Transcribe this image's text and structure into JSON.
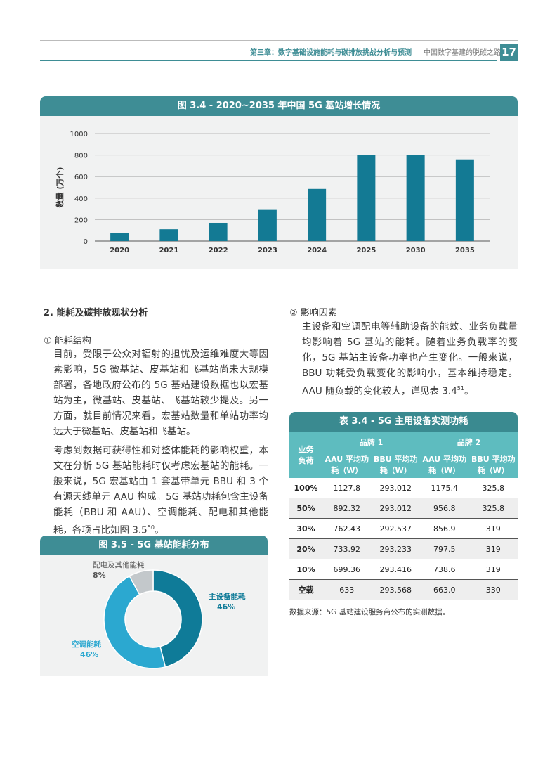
{
  "header": {
    "chapter": "第三章：数字基础设施能耗与碳排放挑战分析与预测",
    "book": "中国数字基建的脱碳之路",
    "page": "17"
  },
  "chart_data": [
    {
      "type": "bar",
      "title": "图 3.4 - 2020~2035 年中国 5G 基站增长情况",
      "y_label": "数量 (万个)",
      "categories": [
        "2020",
        "2021",
        "2022",
        "2023",
        "2024",
        "2025",
        "2030",
        "2035"
      ],
      "values": [
        77,
        110,
        170,
        290,
        485,
        800,
        800,
        760
      ],
      "color": "#137a94",
      "ylim": [
        0,
        1000
      ],
      "yticks": [
        0,
        200,
        400,
        600,
        800,
        1000
      ],
      "grid": true
    },
    {
      "type": "pie",
      "title": "图 3.5 - 5G 基站能耗分布",
      "categories": [
        "主设备能耗",
        "空调能耗",
        "配电及其他能耗"
      ],
      "values": [
        46,
        46,
        8
      ],
      "value_labels": [
        "46%",
        "46%",
        "8%"
      ],
      "colors": [
        "#0f7b98",
        "#2ba8d0",
        "#c3c8cb"
      ]
    }
  ],
  "section": {
    "heading": "2. 能耗及碳排放现状分析"
  },
  "part1": {
    "heading": "① 能耗结构",
    "p1": "目前，受限于公众对辐射的担忧及运维难度大等因素影响，5G 微基站、皮基站和飞基站尚未大规模部署，各地政府公布的 5G 基站建设数据也以宏基站为主，微基站、皮基站、飞基站较少提及。另一方面，就目前情况来看，宏基站数量和单站功率均远大于微基站、皮基站和飞基站。",
    "p2": "考虑到数据可获得性和对整体能耗的影响权重，本文在分析 5G 基站能耗时仅考虑宏基站的能耗。一般来说，5G 宏基站由 1 套基带单元 BBU 和 3 个有源天线单元 AAU 构成。5G 基站功耗包含主设备能耗（BBU 和 AAU）、空调能耗、配电和其他能耗，各项占比如图 3.5",
    "p2_sup": "50",
    "p2_end": "。"
  },
  "part2": {
    "heading": "② 影响因素",
    "p1": "主设备和空调配电等辅助设备的能效、业务负载量均影响着 5G 基站的能耗。随着业务负载率的变化，5G 基站主设备功率也产生变化。一般来说，BBU 功耗受负载变化的影响小，基本维持稳定。AAU 随负载的变化较大，详见表 3.4",
    "p1_sup": "51",
    "p1_end": "。"
  },
  "table": {
    "title": "表 3.4 - 5G 主用设备实测功耗",
    "corner": "业务负荷",
    "brands": [
      "品牌 1",
      "品牌 2"
    ],
    "subheaders": [
      "AAU 平均功耗（W）",
      "BBU 平均功耗（W）",
      "AAU 平均功耗（W）",
      "BBU 平均功耗（W）"
    ],
    "rows": [
      [
        "100%",
        "1127.8",
        "293.012",
        "1175.4",
        "325.8"
      ],
      [
        "50%",
        "892.32",
        "293.012",
        "956.8",
        "325.8"
      ],
      [
        "30%",
        "762.43",
        "292.537",
        "856.9",
        "319"
      ],
      [
        "20%",
        "733.92",
        "293.233",
        "797.5",
        "319"
      ],
      [
        "10%",
        "699.36",
        "293.416",
        "738.6",
        "319"
      ],
      [
        "空载",
        "633",
        "293.568",
        "663.0",
        "330"
      ]
    ],
    "source": "数据来源：5G 基站建设服务商公布的实测数据。"
  }
}
